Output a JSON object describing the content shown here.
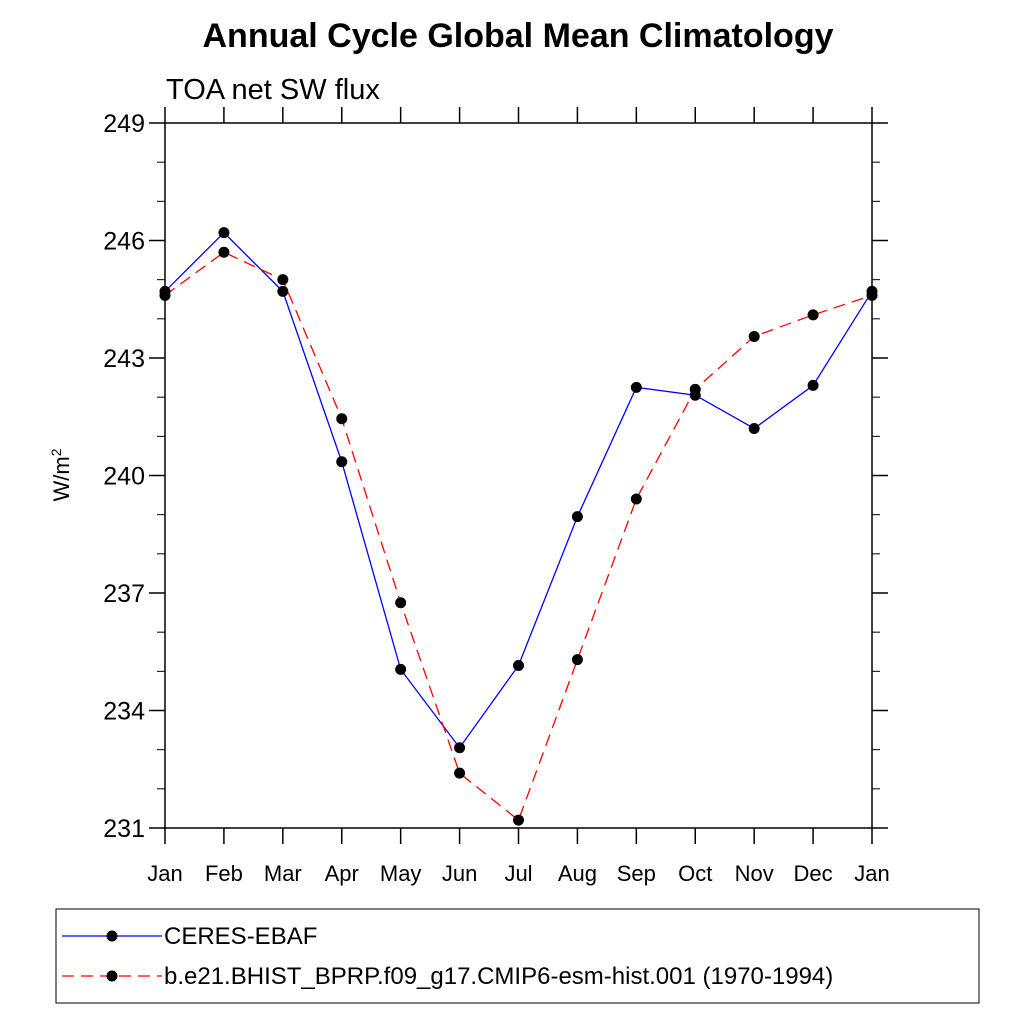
{
  "chart_data": {
    "type": "line",
    "title": "Annual Cycle Global Mean Climatology",
    "subtitle": "TOA net SW flux",
    "ylabel_base": "W/m",
    "ylabel_sup": "2",
    "xlabel": "",
    "categories": [
      "Jan",
      "Feb",
      "Mar",
      "Apr",
      "May",
      "Jun",
      "Jul",
      "Aug",
      "Sep",
      "Oct",
      "Nov",
      "Dec",
      "Jan"
    ],
    "ylim": [
      231,
      249
    ],
    "yticks": [
      231,
      234,
      237,
      240,
      243,
      246,
      249
    ],
    "grid": false,
    "legend_position": "bottom",
    "series": [
      {
        "name": "CERES-EBAF",
        "color": "#0000ff",
        "line_style": "solid",
        "marker": "filled-circle",
        "values": [
          244.7,
          246.2,
          244.7,
          240.35,
          235.05,
          233.05,
          235.15,
          238.95,
          242.25,
          242.05,
          241.2,
          242.3,
          244.7
        ]
      },
      {
        "name": "b.e21.BHIST_BPRP.f09_g17.CMIP6-esm-hist.001 (1970-1994)",
        "color": "#ff0000",
        "line_style": "dashed",
        "marker": "filled-circle",
        "values": [
          244.6,
          245.7,
          245.0,
          241.45,
          236.75,
          232.4,
          231.2,
          235.3,
          239.4,
          242.2,
          243.55,
          244.1,
          244.6
        ]
      }
    ]
  }
}
